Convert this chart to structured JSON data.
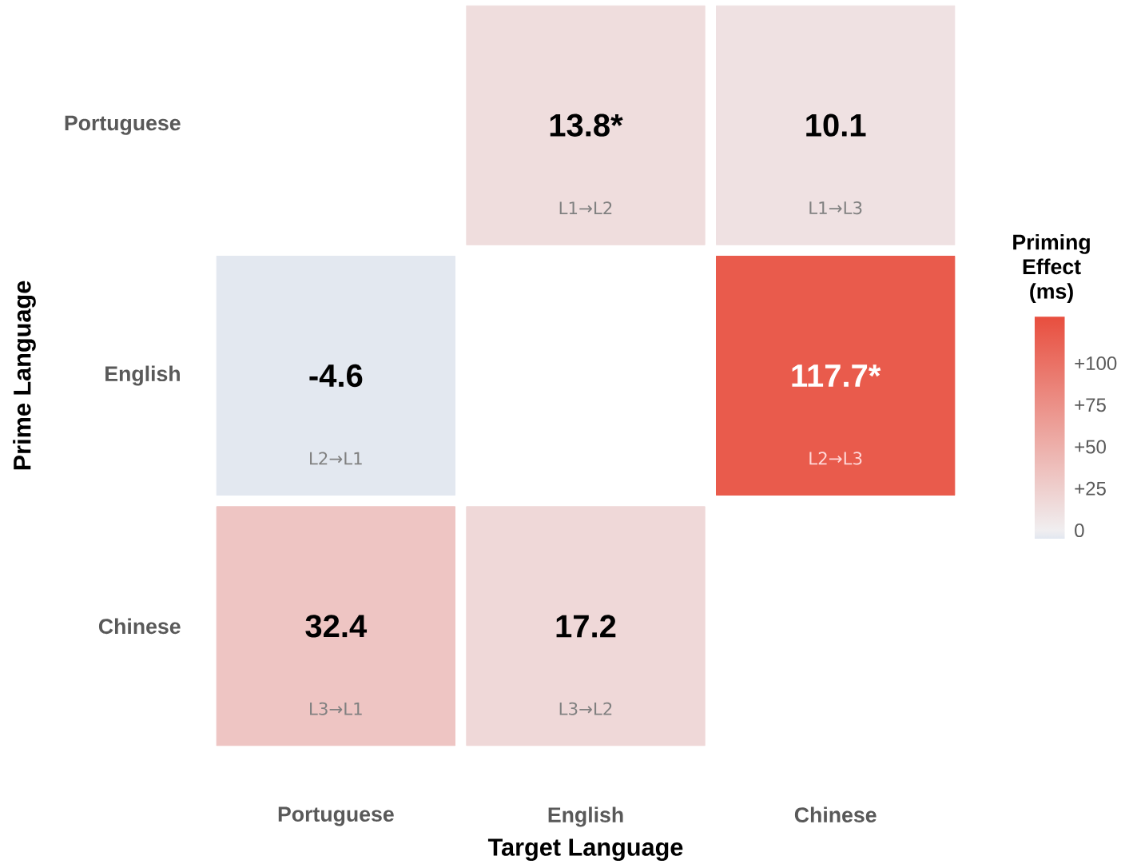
{
  "chart_data": {
    "type": "heatmap",
    "xlabel": "Target Language",
    "ylabel": "Prime Language",
    "clabel": "Priming Effect (ms)",
    "categories": [
      "Portuguese",
      "English",
      "Chinese"
    ],
    "y_categories": [
      "Portuguese",
      "English",
      "Chinese"
    ],
    "cells": [
      [
        null,
        13.8,
        10.1
      ],
      [
        -4.6,
        null,
        117.7
      ],
      [
        32.4,
        17.2,
        null
      ]
    ],
    "cell_labels": [
      [
        null,
        "13.8*",
        "10.1"
      ],
      [
        "-4.6",
        null,
        "117.7*"
      ],
      [
        "32.4",
        "17.2",
        null
      ]
    ],
    "clim": [
      -5,
      128
    ],
    "cticks": [
      0,
      {
        "value": 25,
        "label": "+25"
      },
      {
        "value": 50,
        "label": "+50"
      },
      {
        "value": 75,
        "label": "+75"
      },
      {
        "value": 100,
        "label": "+100"
      }
    ],
    "annotations": [
      "L1→L2",
      "L1→L3",
      "L2→L1",
      "L2→L3",
      "L3→L1",
      "L3→L2"
    ]
  }
}
